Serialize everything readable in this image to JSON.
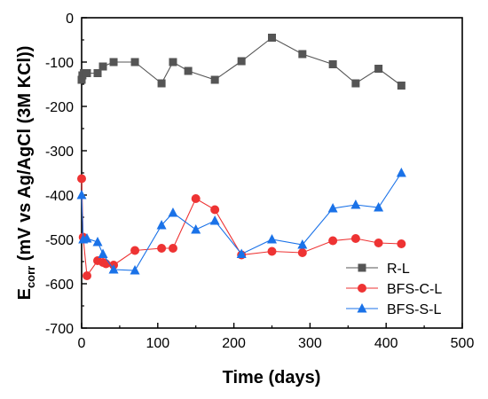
{
  "chart_data": {
    "type": "line",
    "xlabel": "Time (days)",
    "ylabel_main": "E",
    "ylabel_sub": "corr",
    "ylabel_rest": " (mV vs Ag/AgCl (3M KCl))",
    "xlim": [
      0,
      500
    ],
    "ylim": [
      -700,
      0
    ],
    "x_ticks": [
      0,
      100,
      200,
      300,
      400,
      500
    ],
    "y_ticks": [
      0,
      -100,
      -200,
      -300,
      -400,
      -500,
      -600,
      -700
    ],
    "x_tick_labels": [
      "0",
      "100",
      "200",
      "300",
      "400",
      "500"
    ],
    "y_tick_labels": [
      "0",
      "-100",
      "-200",
      "-300",
      "-400",
      "-500",
      "-600",
      "-700"
    ],
    "legend_position": "lower-right",
    "grid": false,
    "series": [
      {
        "name": "R-L",
        "color": "#555555",
        "marker": "square",
        "points": [
          [
            0,
            -140
          ],
          [
            1,
            -130
          ],
          [
            3,
            -125
          ],
          [
            7,
            -125
          ],
          [
            21,
            -125
          ],
          [
            28,
            -110
          ],
          [
            42,
            -100
          ],
          [
            70,
            -100
          ],
          [
            105,
            -148
          ],
          [
            120,
            -100
          ],
          [
            140,
            -120
          ],
          [
            175,
            -140
          ],
          [
            210,
            -98
          ],
          [
            250,
            -45
          ],
          [
            290,
            -82
          ],
          [
            330,
            -105
          ],
          [
            360,
            -148
          ],
          [
            390,
            -115
          ],
          [
            420,
            -153
          ]
        ]
      },
      {
        "name": "BFS-C-L",
        "color": "#ee3333",
        "marker": "circle",
        "points": [
          [
            0,
            -363
          ],
          [
            2,
            -495
          ],
          [
            7,
            -582
          ],
          [
            21,
            -548
          ],
          [
            28,
            -552
          ],
          [
            32,
            -555
          ],
          [
            42,
            -558
          ],
          [
            70,
            -525
          ],
          [
            105,
            -520
          ],
          [
            120,
            -520
          ],
          [
            150,
            -408
          ],
          [
            175,
            -433
          ],
          [
            210,
            -535
          ],
          [
            250,
            -527
          ],
          [
            290,
            -530
          ],
          [
            330,
            -503
          ],
          [
            360,
            -498
          ],
          [
            390,
            -508
          ],
          [
            420,
            -510
          ]
        ]
      },
      {
        "name": "BFS-S-L",
        "color": "#1a72e8",
        "marker": "triangle",
        "points": [
          [
            0,
            -400
          ],
          [
            2,
            -500
          ],
          [
            7,
            -498
          ],
          [
            21,
            -506
          ],
          [
            28,
            -533
          ],
          [
            42,
            -568
          ],
          [
            70,
            -570
          ],
          [
            105,
            -468
          ],
          [
            120,
            -440
          ],
          [
            150,
            -478
          ],
          [
            175,
            -458
          ],
          [
            210,
            -533
          ],
          [
            250,
            -500
          ],
          [
            290,
            -512
          ],
          [
            330,
            -430
          ],
          [
            360,
            -422
          ],
          [
            390,
            -428
          ],
          [
            420,
            -350
          ]
        ]
      }
    ]
  }
}
